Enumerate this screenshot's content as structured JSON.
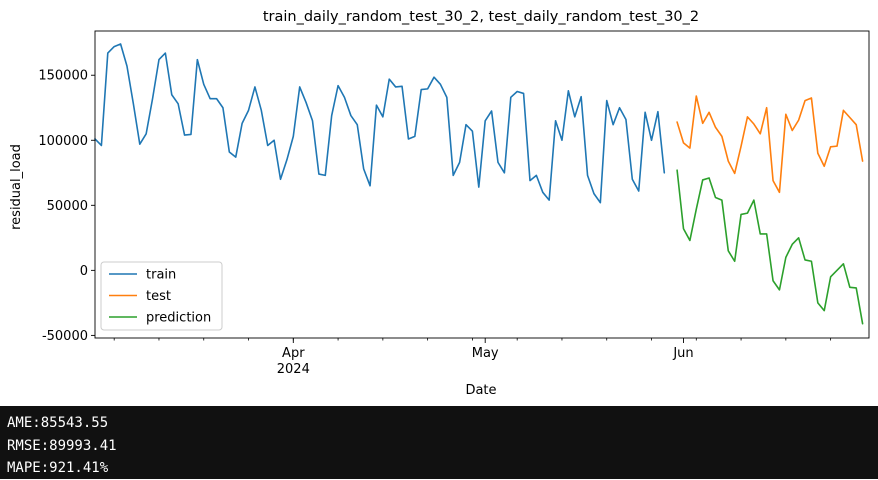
{
  "chart_data": {
    "type": "line",
    "title": "train_daily_random_test_30_2, test_daily_random_test_30_2",
    "xlabel": "Date",
    "ylabel": "residual_load",
    "xlim": [
      "2024-03-01",
      "2024-06-30"
    ],
    "ylim": [
      -52000,
      184000
    ],
    "yticks": [
      -50000,
      0,
      50000,
      100000,
      150000
    ],
    "xticks_major": [
      {
        "date": "2024-04-01",
        "label": "Apr",
        "sublabel": "2024"
      },
      {
        "date": "2024-05-01",
        "label": "May",
        "sublabel": ""
      },
      {
        "date": "2024-06-01",
        "label": "Jun",
        "sublabel": ""
      }
    ],
    "legend_placement": "lower-left",
    "grid": false,
    "series": [
      {
        "name": "train",
        "color": "#1f77b4",
        "start_date": "2024-03-01",
        "values": [
          101000,
          96000,
          167000,
          172000,
          174000,
          157000,
          128000,
          97000,
          105000,
          132000,
          162000,
          167000,
          135000,
          128000,
          104000,
          104500,
          162000,
          143000,
          132000,
          132000,
          125000,
          91000,
          87000,
          113000,
          123000,
          141000,
          123000,
          96000,
          100000,
          70000,
          85000,
          103000,
          141000,
          129000,
          115000,
          74000,
          73000,
          119000,
          142000,
          133000,
          119000,
          112000,
          78000,
          65000,
          127000,
          118000,
          147000,
          141000,
          141500,
          101000,
          103000,
          139000,
          139500,
          148500,
          143000,
          133000,
          73000,
          83000,
          112000,
          107000,
          64000,
          115000,
          122500,
          83000,
          75000,
          133000,
          137500,
          136000,
          69000,
          73000,
          60000,
          54000,
          115000,
          100000,
          138000,
          118000,
          133500,
          73000,
          59000,
          52000,
          130500,
          112000,
          125000,
          116000,
          70000,
          61000,
          121500,
          100000,
          122000,
          75000
        ]
      },
      {
        "name": "test",
        "color": "#ff7f0e",
        "start_date": "2024-05-31",
        "values": [
          114000,
          98000,
          94000,
          134000,
          113000,
          121500,
          110000,
          103000,
          84000,
          74500,
          95500,
          118000,
          112500,
          105000,
          125000,
          69000,
          60000,
          120000,
          107500,
          115500,
          130500,
          132500,
          90000,
          80000,
          95000,
          95500,
          123000,
          117500,
          112000,
          84000
        ]
      },
      {
        "name": "prediction",
        "color": "#2ca02c",
        "start_date": "2024-05-31",
        "values": [
          77000,
          32000,
          23000,
          47000,
          69500,
          71000,
          56000,
          54000,
          15000,
          7000,
          43000,
          44000,
          54000,
          28000,
          28000,
          -8000,
          -15000,
          10000,
          20000,
          25000,
          8000,
          7000,
          -25000,
          -31000,
          -5000,
          0,
          5000,
          -13000,
          -13500,
          -41000
        ]
      }
    ]
  },
  "console": {
    "lines": [
      "AME:85543.55",
      "RMSE:89993.41",
      "MAPE:921.41%"
    ]
  }
}
